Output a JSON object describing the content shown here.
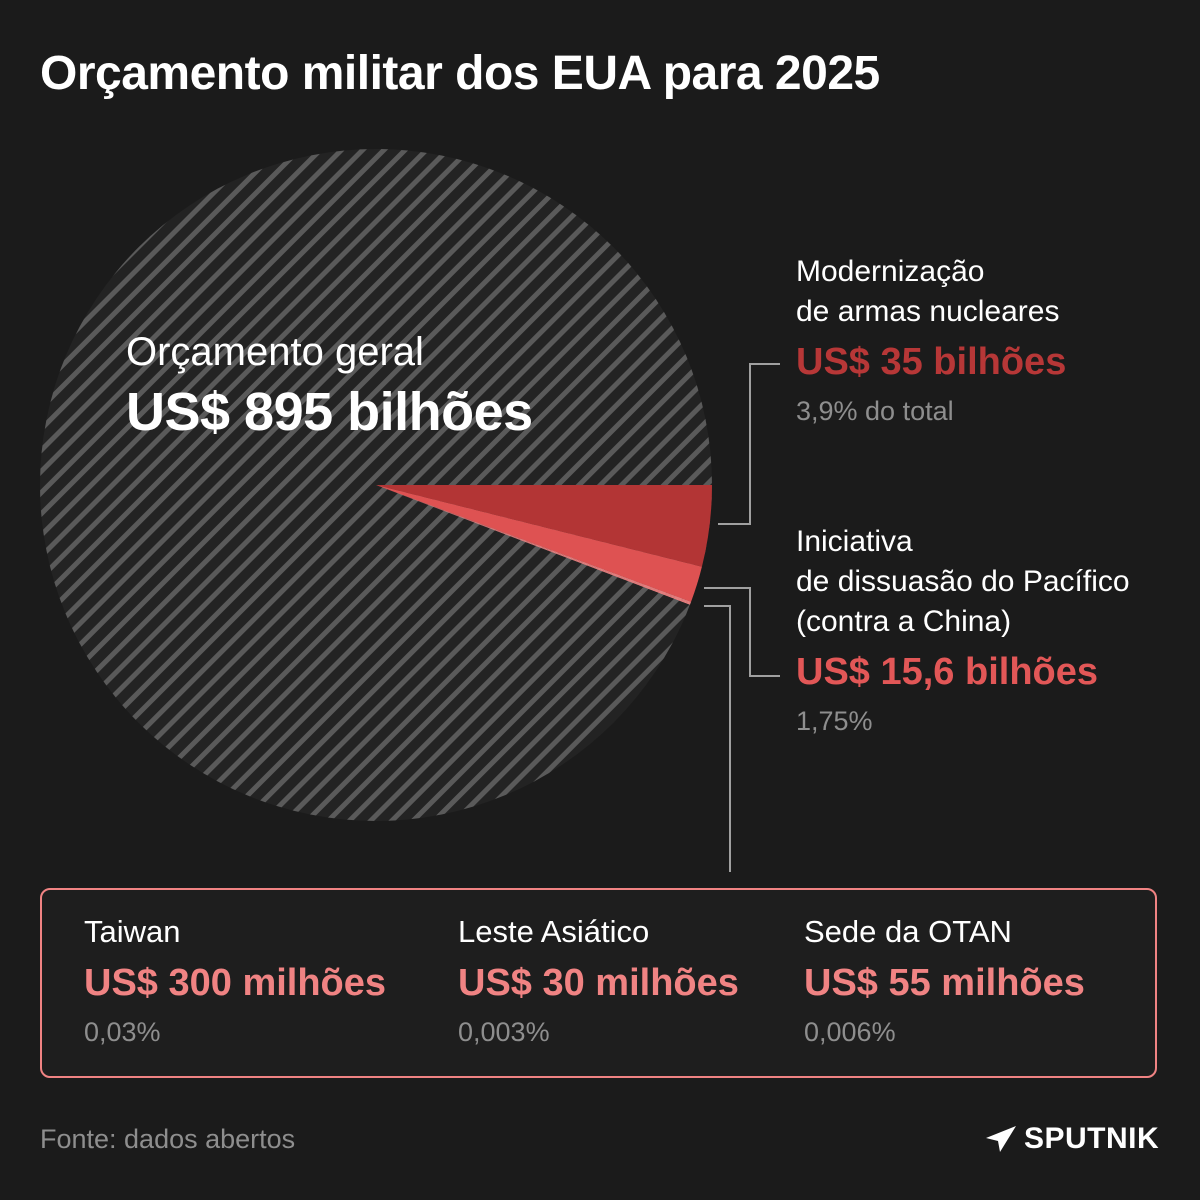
{
  "title": "Orçamento militar dos EUA para 2025",
  "chart_data": {
    "type": "pie",
    "title": "Orçamento militar dos EUA para 2025",
    "total": {
      "label": "Orçamento geral",
      "value_text": "US$ 895 bilhões",
      "value": 895,
      "unit": "bilhões"
    },
    "slices": [
      {
        "label": "Modernização\nde armas nucleares",
        "value_text": "US$ 35 bilhões",
        "value": 35,
        "percent_text": "3,9% do total",
        "color": "#b33535"
      },
      {
        "label": "Iniciativa\nde dissuasão do Pacífico\n(contra a China)",
        "value_text": "US$ 15,6 bilhões",
        "value": 15.6,
        "percent_text": "1,75%",
        "color": "#de5252"
      },
      {
        "label": "Taiwan",
        "value_text": "US$ 300 milhões",
        "value": 0.3,
        "percent_text": "0,03%",
        "color": "#f08383"
      },
      {
        "label": "Leste Asiático",
        "value_text": "US$ 30 milhões",
        "value": 0.03,
        "percent_text": "0,003%",
        "color": "#f08383"
      },
      {
        "label": "Sede da OTAN",
        "value_text": "US$ 55 milhões",
        "value": 0.055,
        "percent_text": "0,006%",
        "color": "#f08383"
      }
    ]
  },
  "colors": {
    "background": "#1b1b1b",
    "hatch_stripe": "#5a5a5a",
    "hatch_base": "#232323",
    "leader_line": "#a0a0a0",
    "muted_text": "#8e8e8e"
  },
  "source": "Fonte: dados abertos",
  "logo": {
    "icon": "sputnik-logo-icon",
    "text": "SPUTNIK"
  }
}
